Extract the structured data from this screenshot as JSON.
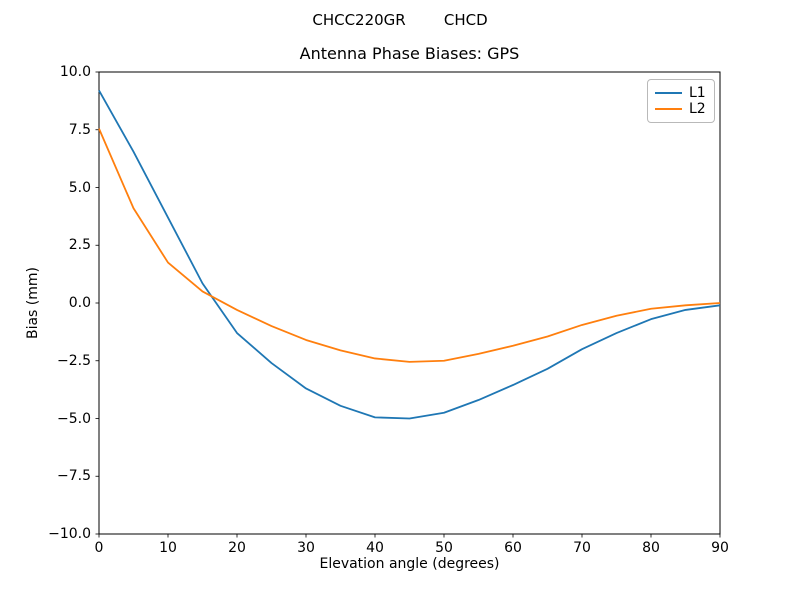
{
  "chart_data": {
    "type": "line",
    "suptitle": "CHCC220GR        CHCD",
    "title": "Antenna Phase Biases: GPS",
    "xlabel": "Elevation angle (degrees)",
    "ylabel": "Bias (mm)",
    "xlim": [
      0,
      90
    ],
    "ylim": [
      -10,
      10
    ],
    "grid": false,
    "background": "#ffffff",
    "axis_color": "#000000",
    "legend": {
      "position": "upper right",
      "border_color": "#b9b9b9",
      "entries": [
        "L1",
        "L2"
      ]
    },
    "x_ticks": [
      0,
      10,
      20,
      30,
      40,
      50,
      60,
      70,
      80,
      90
    ],
    "x_tick_labels": [
      "0",
      "10",
      "20",
      "30",
      "40",
      "50",
      "60",
      "70",
      "80",
      "90"
    ],
    "y_ticks": [
      10,
      7.5,
      5,
      2.5,
      0,
      -2.5,
      -5,
      -7.5,
      -10
    ],
    "y_tick_labels": [
      "10.0",
      "7.5",
      "5.0",
      "2.5",
      "0.0",
      "−2.5",
      "−5.0",
      "−7.5",
      "−10.0"
    ],
    "x": [
      0,
      5,
      10,
      15,
      20,
      25,
      30,
      35,
      40,
      45,
      50,
      55,
      60,
      65,
      70,
      75,
      80,
      85,
      90
    ],
    "series": [
      {
        "name": "L1",
        "color": "#1f77b4",
        "values": [
          9.2,
          6.55,
          3.7,
          0.85,
          -1.3,
          -2.6,
          -3.7,
          -4.45,
          -4.95,
          -5.0,
          -4.75,
          -4.2,
          -3.55,
          -2.85,
          -2.0,
          -1.3,
          -0.7,
          -0.3,
          -0.1
        ]
      },
      {
        "name": "L2",
        "color": "#ff7f0e",
        "values": [
          7.55,
          4.1,
          1.75,
          0.5,
          -0.3,
          -1.0,
          -1.6,
          -2.05,
          -2.4,
          -2.55,
          -2.5,
          -2.2,
          -1.85,
          -1.45,
          -0.95,
          -0.55,
          -0.25,
          -0.1,
          0.0
        ]
      }
    ]
  }
}
